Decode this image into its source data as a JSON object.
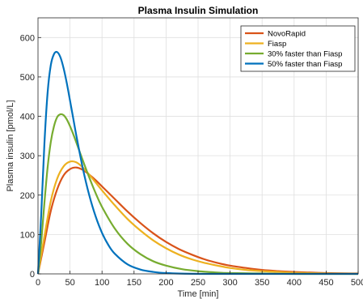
{
  "chart_data": {
    "type": "line",
    "title": "Plasma Insulin Simulation",
    "xlabel": "Time [min]",
    "ylabel": "Plasma insulin [pmol/L]",
    "xlim": [
      0,
      500
    ],
    "ylim": [
      0,
      650
    ],
    "xticks": [
      0,
      50,
      100,
      150,
      200,
      250,
      300,
      350,
      400,
      450,
      500
    ],
    "yticks": [
      0,
      100,
      200,
      300,
      400,
      500,
      600
    ],
    "grid": true,
    "legend_position": "top-right",
    "series": [
      {
        "name": "NovoRapid",
        "color": "#D95319",
        "x": [
          0,
          10,
          20,
          30,
          40,
          50,
          60,
          70,
          80,
          90,
          100,
          120,
          140,
          160,
          180,
          200,
          220,
          240,
          260,
          280,
          300,
          325,
          350,
          375,
          400,
          450,
          500
        ],
        "y": [
          0,
          80,
          160,
          215,
          250,
          266,
          270,
          264,
          252,
          238,
          222,
          190,
          158,
          129,
          103,
          81,
          63,
          49,
          37,
          28,
          21,
          15,
          10,
          7,
          5,
          2,
          1
        ]
      },
      {
        "name": "Fiasp",
        "color": "#EDB120",
        "x": [
          0,
          10,
          20,
          30,
          40,
          50,
          60,
          70,
          80,
          90,
          100,
          120,
          140,
          160,
          180,
          200,
          220,
          240,
          260,
          280,
          300,
          325,
          350,
          375,
          400,
          450,
          500
        ],
        "y": [
          0,
          95,
          185,
          242,
          273,
          285,
          283,
          270,
          252,
          232,
          212,
          174,
          139,
          110,
          85,
          65,
          49,
          37,
          28,
          21,
          15,
          10,
          7,
          5,
          3,
          1,
          0
        ]
      },
      {
        "name": "30% faster than Fiasp",
        "color": "#77AC30",
        "x": [
          0,
          5,
          10,
          15,
          20,
          25,
          30,
          35,
          40,
          45,
          50,
          55,
          60,
          70,
          80,
          90,
          100,
          120,
          140,
          160,
          180,
          200,
          225,
          250,
          275,
          300,
          350,
          400,
          500
        ],
        "y": [
          0,
          80,
          180,
          270,
          335,
          375,
          398,
          405,
          403,
          392,
          375,
          355,
          333,
          288,
          245,
          205,
          170,
          115,
          76,
          50,
          32,
          21,
          12,
          7,
          4,
          2,
          1,
          0,
          0
        ]
      },
      {
        "name": "50% faster than Fiasp",
        "color": "#0072BD",
        "x": [
          0,
          5,
          10,
          15,
          20,
          25,
          30,
          35,
          40,
          45,
          50,
          55,
          60,
          70,
          80,
          90,
          100,
          110,
          120,
          140,
          160,
          180,
          200,
          250,
          300,
          500
        ],
        "y": [
          0,
          150,
          330,
          460,
          530,
          558,
          563,
          550,
          522,
          484,
          440,
          395,
          350,
          268,
          200,
          146,
          104,
          73,
          51,
          24,
          11,
          5,
          2,
          0,
          0,
          0
        ]
      }
    ]
  }
}
